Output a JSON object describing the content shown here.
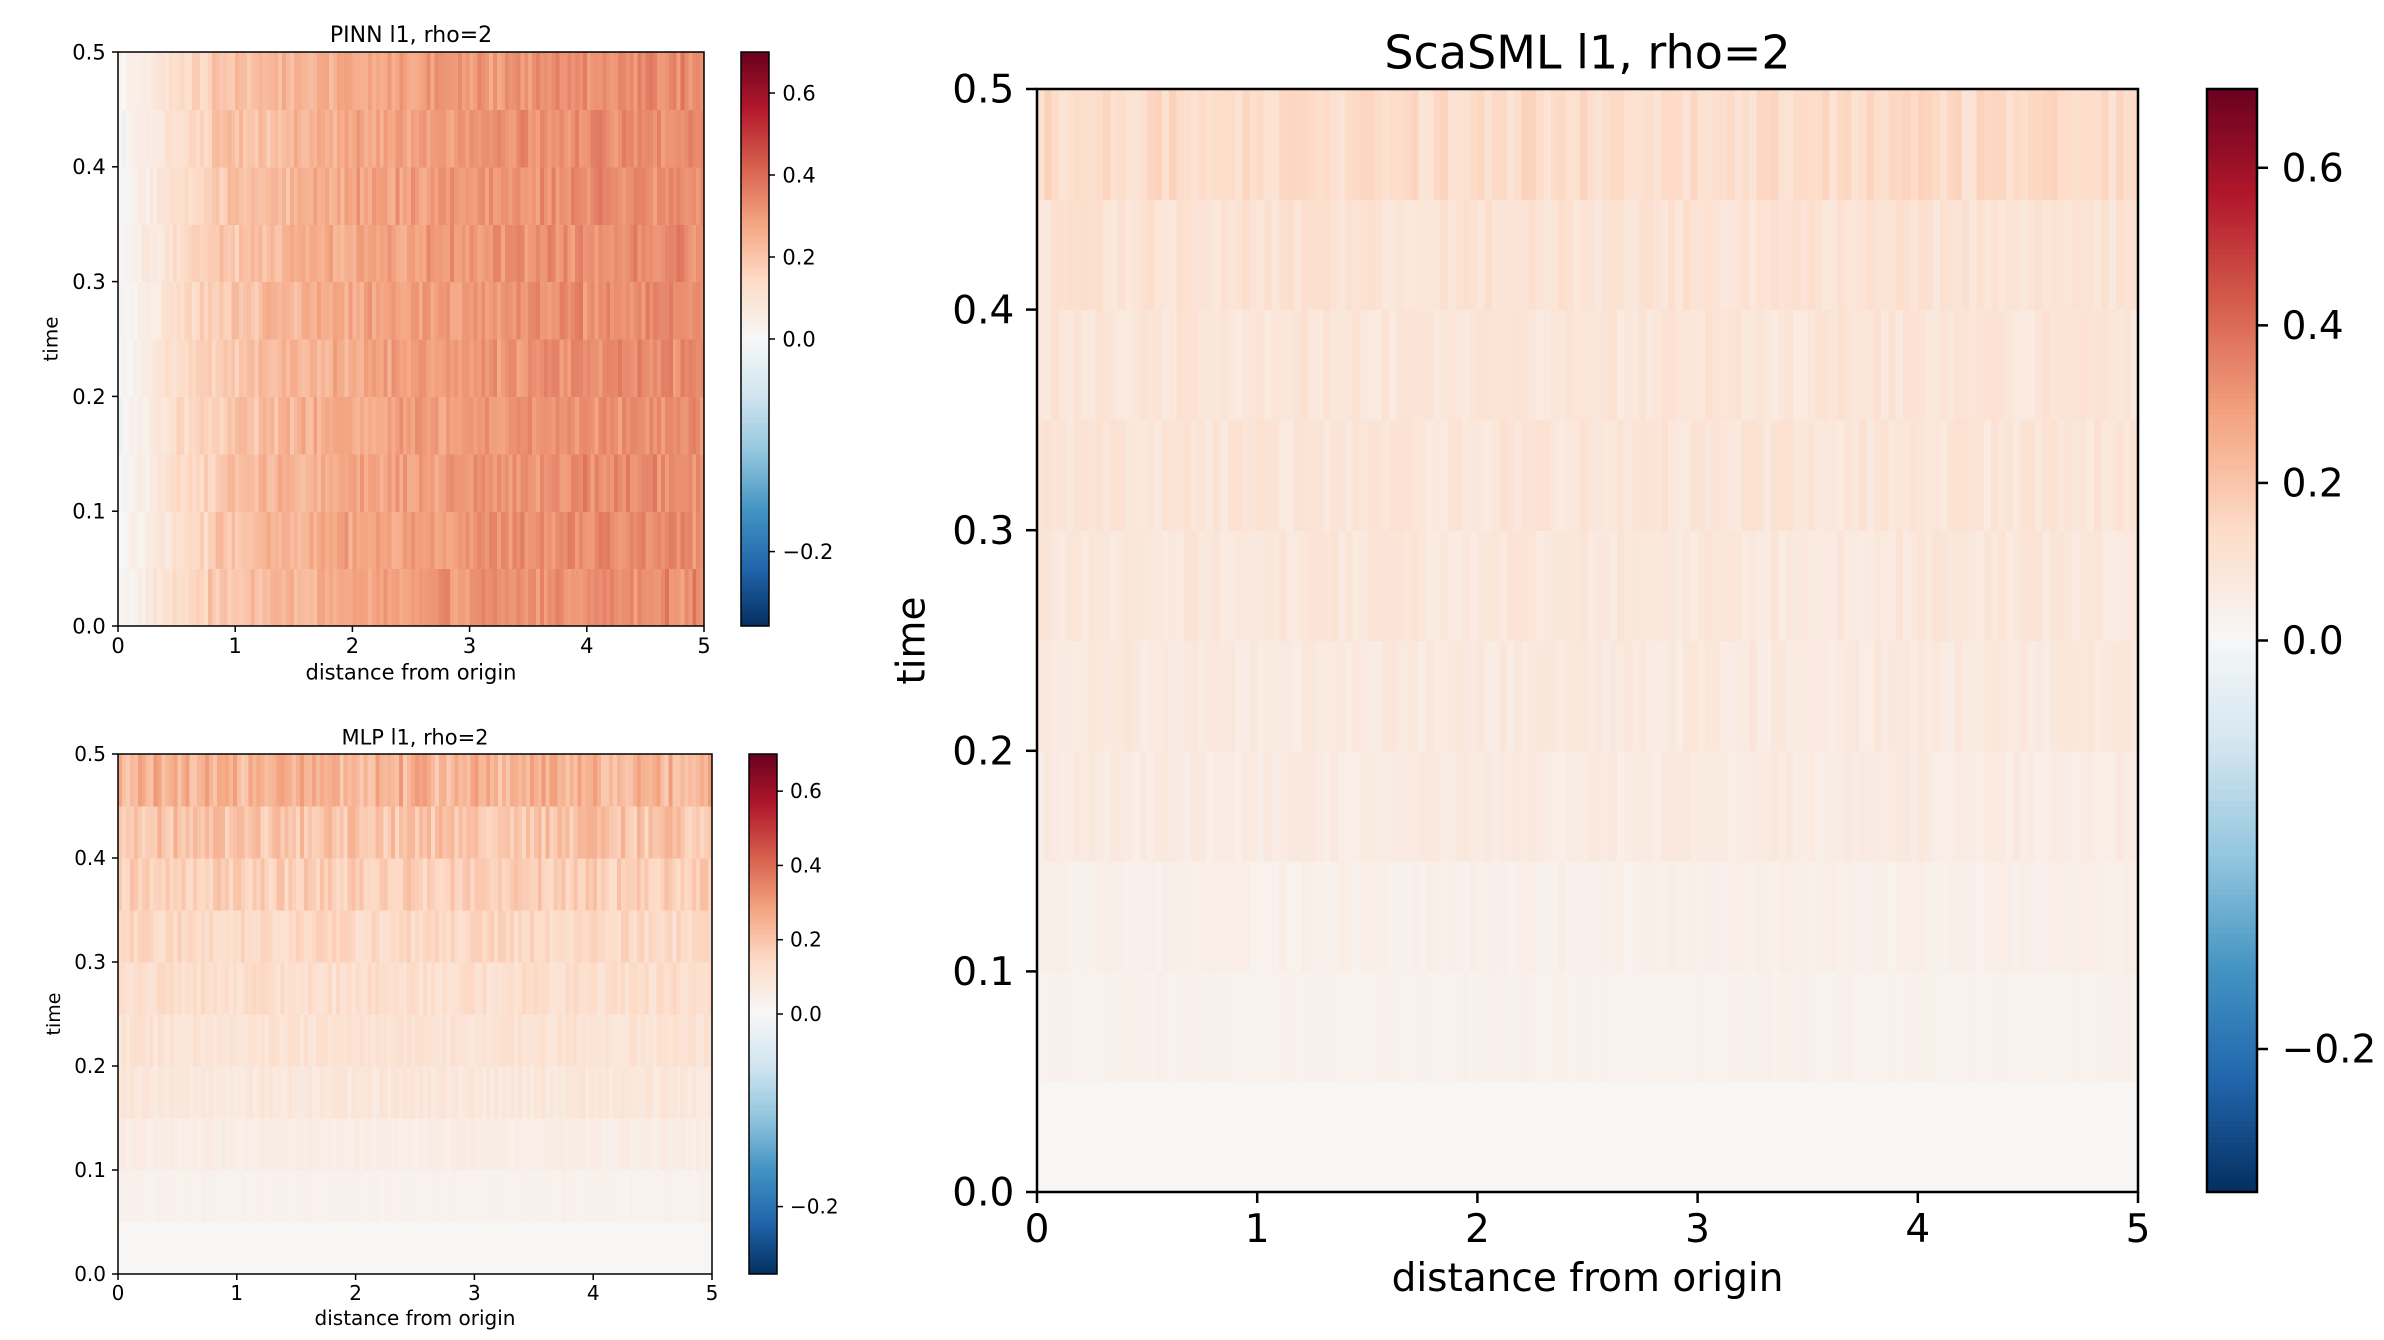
{
  "colorbar": {
    "colormap": "RdBu_r",
    "vmin": -0.27,
    "vmax": 0.7,
    "ticks": [
      -0.2,
      0.0,
      0.2,
      0.4,
      0.6
    ],
    "tick_labels": [
      "−0.2",
      "0.0",
      "0.2",
      "0.4",
      "0.6"
    ]
  },
  "chart_data": [
    {
      "type": "heatmap",
      "title": "PINN l1, rho=2",
      "xlabel": "distance from origin",
      "ylabel": "time",
      "xlim": [
        0,
        5
      ],
      "ylim": [
        0,
        0.5
      ],
      "xticks": [
        0,
        1,
        2,
        3,
        4,
        5
      ],
      "xtick_labels": [
        "0",
        "1",
        "2",
        "3",
        "4",
        "5"
      ],
      "yticks": [
        0.0,
        0.1,
        0.2,
        0.3,
        0.4,
        0.5
      ],
      "ytick_labels": [
        "0.0",
        "0.1",
        "0.2",
        "0.3",
        "0.4",
        "0.5"
      ],
      "time_bands": [
        0.0,
        0.05,
        0.1,
        0.15,
        0.2,
        0.25,
        0.3,
        0.35,
        0.4,
        0.45
      ],
      "distance_profile": {
        "distance": [
          0,
          0.25,
          0.5,
          0.75,
          1,
          1.5,
          2,
          2.5,
          3,
          3.5,
          4,
          4.5,
          5
        ],
        "mean_value": [
          0.0,
          0.06,
          0.12,
          0.17,
          0.2,
          0.24,
          0.27,
          0.29,
          0.31,
          0.32,
          0.33,
          0.33,
          0.33
        ]
      }
    },
    {
      "type": "heatmap",
      "title": "MLP l1, rho=2",
      "xlabel": "distance from origin",
      "ylabel": "time",
      "xlim": [
        0,
        5
      ],
      "ylim": [
        0,
        0.5
      ],
      "xticks": [
        0,
        1,
        2,
        3,
        4,
        5
      ],
      "xtick_labels": [
        "0",
        "1",
        "2",
        "3",
        "4",
        "5"
      ],
      "yticks": [
        0.0,
        0.1,
        0.2,
        0.3,
        0.4,
        0.5
      ],
      "ytick_labels": [
        "0.0",
        "0.1",
        "0.2",
        "0.3",
        "0.4",
        "0.5"
      ],
      "time_bands": [
        0.0,
        0.05,
        0.1,
        0.15,
        0.2,
        0.25,
        0.3,
        0.35,
        0.4,
        0.45
      ],
      "band_mean_value": [
        0.005,
        0.03,
        0.05,
        0.08,
        0.1,
        0.12,
        0.14,
        0.17,
        0.2,
        0.24
      ]
    },
    {
      "type": "heatmap",
      "title": "ScaSML l1, rho=2",
      "xlabel": "distance from origin",
      "ylabel": "time",
      "xlim": [
        0,
        5
      ],
      "ylim": [
        0,
        0.5
      ],
      "xticks": [
        0,
        1,
        2,
        3,
        4,
        5
      ],
      "xtick_labels": [
        "0",
        "1",
        "2",
        "3",
        "4",
        "5"
      ],
      "yticks": [
        0.0,
        0.1,
        0.2,
        0.3,
        0.4,
        0.5
      ],
      "ytick_labels": [
        "0.0",
        "0.1",
        "0.2",
        "0.3",
        "0.4",
        "0.5"
      ],
      "time_bands": [
        0.0,
        0.05,
        0.1,
        0.15,
        0.2,
        0.25,
        0.3,
        0.35,
        0.4,
        0.45
      ],
      "band_mean_value": [
        0.005,
        0.03,
        0.04,
        0.06,
        0.07,
        0.08,
        0.09,
        0.09,
        0.1,
        0.13
      ]
    }
  ]
}
